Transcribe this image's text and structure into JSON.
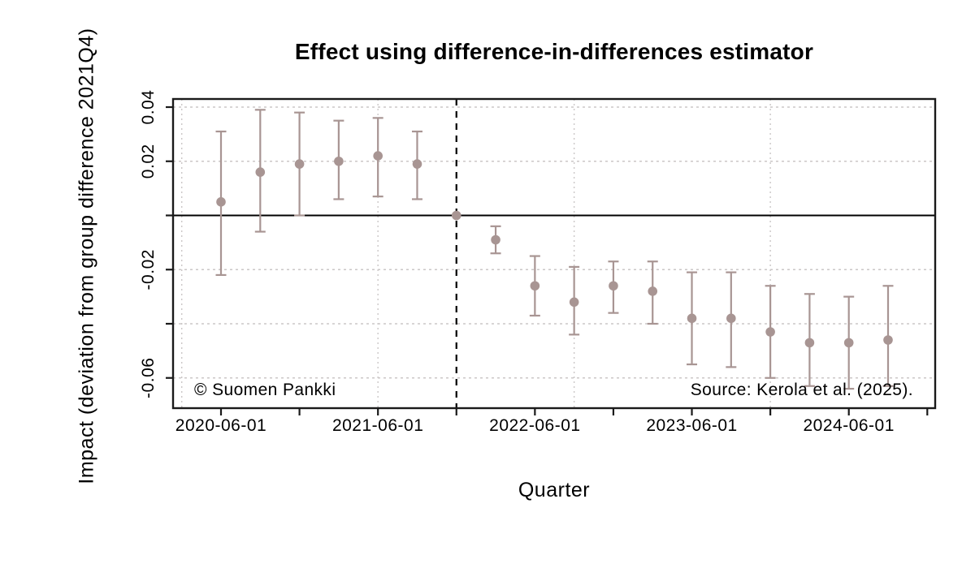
{
  "chart_data": {
    "type": "scatter",
    "title": "Effect using difference-in-differences estimator",
    "xlabel": "Quarter",
    "ylabel": "Impact (deviation from group difference 2021Q4)",
    "annotations": {
      "copyright": "© Suomen Pankki",
      "source": "Source: Kerola et al. (2025)."
    },
    "ylim": [
      -0.0712,
      0.0431
    ],
    "grid": true,
    "legend": "none",
    "y_ticks": [
      {
        "value": 0.04,
        "label": "0.04"
      },
      {
        "value": 0.02,
        "label": "0.02"
      },
      {
        "value": 0.0,
        "label": ""
      },
      {
        "value": -0.02,
        "label": "-0.02"
      },
      {
        "value": -0.04,
        "label": ""
      },
      {
        "value": -0.06,
        "label": "-0.06"
      }
    ],
    "x_ticks": [
      {
        "q": 0,
        "label": "2020-06-01"
      },
      {
        "q": 2,
        "label": ""
      },
      {
        "q": 4,
        "label": "2021-06-01"
      },
      {
        "q": 6,
        "label": ""
      },
      {
        "q": 8,
        "label": "2022-06-01"
      },
      {
        "q": 10,
        "label": ""
      },
      {
        "q": 12,
        "label": "2023-06-01"
      },
      {
        "q": 14,
        "label": ""
      },
      {
        "q": 16,
        "label": "2024-06-01"
      },
      {
        "q": 18,
        "label": ""
      }
    ],
    "h_gridlines": [
      0.04,
      0.02,
      0.0,
      -0.02,
      -0.04,
      -0.06
    ],
    "v_gridlines_q": [
      -1,
      4,
      9,
      14
    ],
    "zero_line_value": 0,
    "treatment_vline_q": 6,
    "reference_date": "2021-12-01",
    "points": [
      {
        "date": "2020-06-01",
        "q": 0,
        "value": 0.005,
        "lo": -0.022,
        "hi": 0.031
      },
      {
        "date": "2020-09-01",
        "q": 1,
        "value": 0.016,
        "lo": -0.006,
        "hi": 0.039
      },
      {
        "date": "2020-12-01",
        "q": 2,
        "value": 0.019,
        "lo": 0.0,
        "hi": 0.038
      },
      {
        "date": "2021-03-01",
        "q": 3,
        "value": 0.02,
        "lo": 0.006,
        "hi": 0.035
      },
      {
        "date": "2021-06-01",
        "q": 4,
        "value": 0.022,
        "lo": 0.007,
        "hi": 0.036
      },
      {
        "date": "2021-09-01",
        "q": 5,
        "value": 0.019,
        "lo": 0.006,
        "hi": 0.031
      },
      {
        "date": "2021-12-01",
        "q": 6,
        "value": 0.0,
        "lo": 0.0,
        "hi": 0.0,
        "reference": true
      },
      {
        "date": "2022-03-01",
        "q": 7,
        "value": -0.009,
        "lo": -0.014,
        "hi": -0.004
      },
      {
        "date": "2022-06-01",
        "q": 8,
        "value": -0.026,
        "lo": -0.037,
        "hi": -0.015
      },
      {
        "date": "2022-09-01",
        "q": 9,
        "value": -0.032,
        "lo": -0.044,
        "hi": -0.019
      },
      {
        "date": "2022-12-01",
        "q": 10,
        "value": -0.026,
        "lo": -0.036,
        "hi": -0.017
      },
      {
        "date": "2023-03-01",
        "q": 11,
        "value": -0.028,
        "lo": -0.04,
        "hi": -0.017
      },
      {
        "date": "2023-06-01",
        "q": 12,
        "value": -0.038,
        "lo": -0.055,
        "hi": -0.021
      },
      {
        "date": "2023-09-01",
        "q": 13,
        "value": -0.038,
        "lo": -0.056,
        "hi": -0.021
      },
      {
        "date": "2023-12-01",
        "q": 14,
        "value": -0.043,
        "lo": -0.06,
        "hi": -0.026
      },
      {
        "date": "2024-03-01",
        "q": 15,
        "value": -0.047,
        "lo": -0.063,
        "hi": -0.029
      },
      {
        "date": "2024-06-01",
        "q": 16,
        "value": -0.047,
        "lo": -0.064,
        "hi": -0.03
      },
      {
        "date": "2024-09-01",
        "q": 17,
        "value": -0.046,
        "lo": -0.063,
        "hi": -0.026
      }
    ],
    "colors": {
      "marker": "#a89593",
      "errorbar": "#a89593",
      "grid": "#cbc7c7",
      "axis": "#1a1a1a",
      "zero_line": "#000000",
      "treatment_line": "#000000",
      "text": "#000000",
      "background": "#ffffff"
    }
  }
}
